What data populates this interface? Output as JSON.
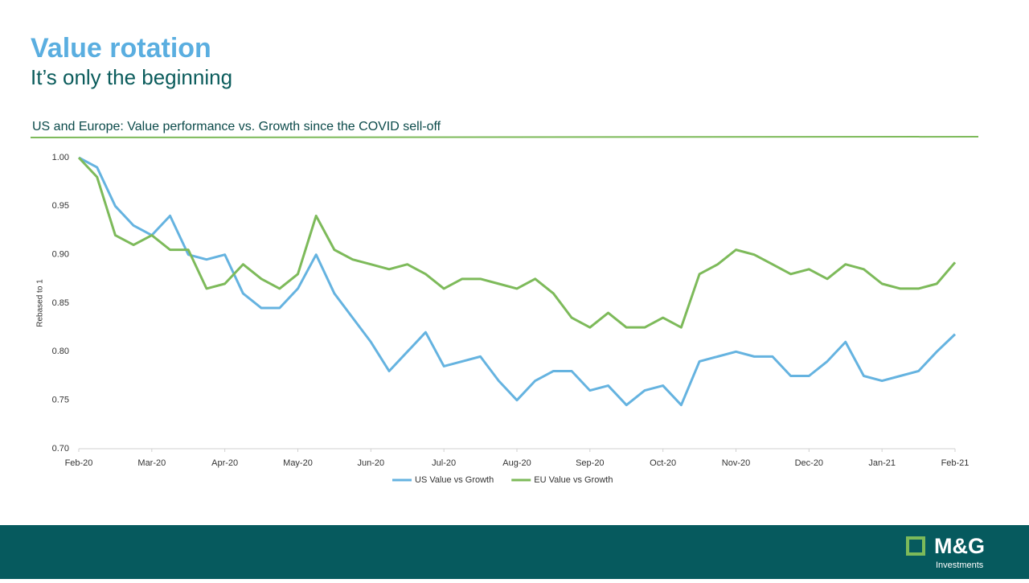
{
  "header": {
    "title": "Value rotation",
    "subtitle": "It’s only the beginning"
  },
  "chart_data": {
    "type": "line",
    "title": "US and Europe: Value performance vs. Growth since the COVID sell-off",
    "y_label": "Rebased to 1",
    "categories": [
      "Feb-20",
      null,
      null,
      null,
      "Mar-20",
      null,
      null,
      null,
      "Apr-20",
      null,
      null,
      null,
      "May-20",
      null,
      null,
      null,
      "Jun-20",
      null,
      null,
      null,
      "Jul-20",
      null,
      null,
      null,
      "Aug-20",
      null,
      null,
      null,
      "Sep-20",
      null,
      null,
      null,
      "Oct-20",
      null,
      null,
      null,
      "Nov-20",
      null,
      null,
      null,
      "Dec-20",
      null,
      null,
      null,
      "Jan-21",
      null,
      null,
      null,
      "Feb-21"
    ],
    "series": [
      {
        "name": "US Value vs Growth",
        "color": "#65b3e0",
        "values": [
          1.0,
          0.99,
          0.95,
          0.93,
          0.92,
          0.94,
          0.9,
          0.895,
          0.9,
          0.86,
          0.845,
          0.845,
          0.865,
          0.9,
          0.86,
          0.835,
          0.81,
          0.78,
          0.8,
          0.82,
          0.785,
          0.79,
          0.795,
          0.77,
          0.75,
          0.77,
          0.78,
          0.78,
          0.76,
          0.765,
          0.745,
          0.76,
          0.765,
          0.745,
          0.79,
          0.795,
          0.8,
          0.795,
          0.795,
          0.775,
          0.775,
          0.79,
          0.81,
          0.775,
          0.77,
          0.775,
          0.78,
          0.8,
          0.818
        ]
      },
      {
        "name": "EU Value vs Growth",
        "color": "#7dba5a",
        "values": [
          1.0,
          0.98,
          0.92,
          0.91,
          0.92,
          0.905,
          0.905,
          0.865,
          0.87,
          0.89,
          0.875,
          0.865,
          0.88,
          0.94,
          0.905,
          0.895,
          0.89,
          0.885,
          0.89,
          0.88,
          0.865,
          0.875,
          0.875,
          0.87,
          0.865,
          0.875,
          0.86,
          0.835,
          0.825,
          0.84,
          0.825,
          0.825,
          0.835,
          0.825,
          0.88,
          0.89,
          0.905,
          0.9,
          0.89,
          0.88,
          0.885,
          0.875,
          0.89,
          0.885,
          0.87,
          0.865,
          0.865,
          0.87,
          0.892
        ]
      }
    ],
    "ylim": [
      0.7,
      1.0
    ],
    "yticks": [
      {
        "value": 0.7,
        "label": "0.70"
      },
      {
        "value": 0.75,
        "label": "0.75"
      },
      {
        "value": 0.8,
        "label": "0.80"
      },
      {
        "value": 0.85,
        "label": "0.85"
      },
      {
        "value": 0.9,
        "label": "0.90"
      },
      {
        "value": 0.95,
        "label": "0.95"
      },
      {
        "value": 1.0,
        "label": "1.00"
      }
    ],
    "grid": false,
    "legend": "bottom"
  },
  "footer": {
    "brand": "M&G",
    "tagline": "Investments"
  }
}
